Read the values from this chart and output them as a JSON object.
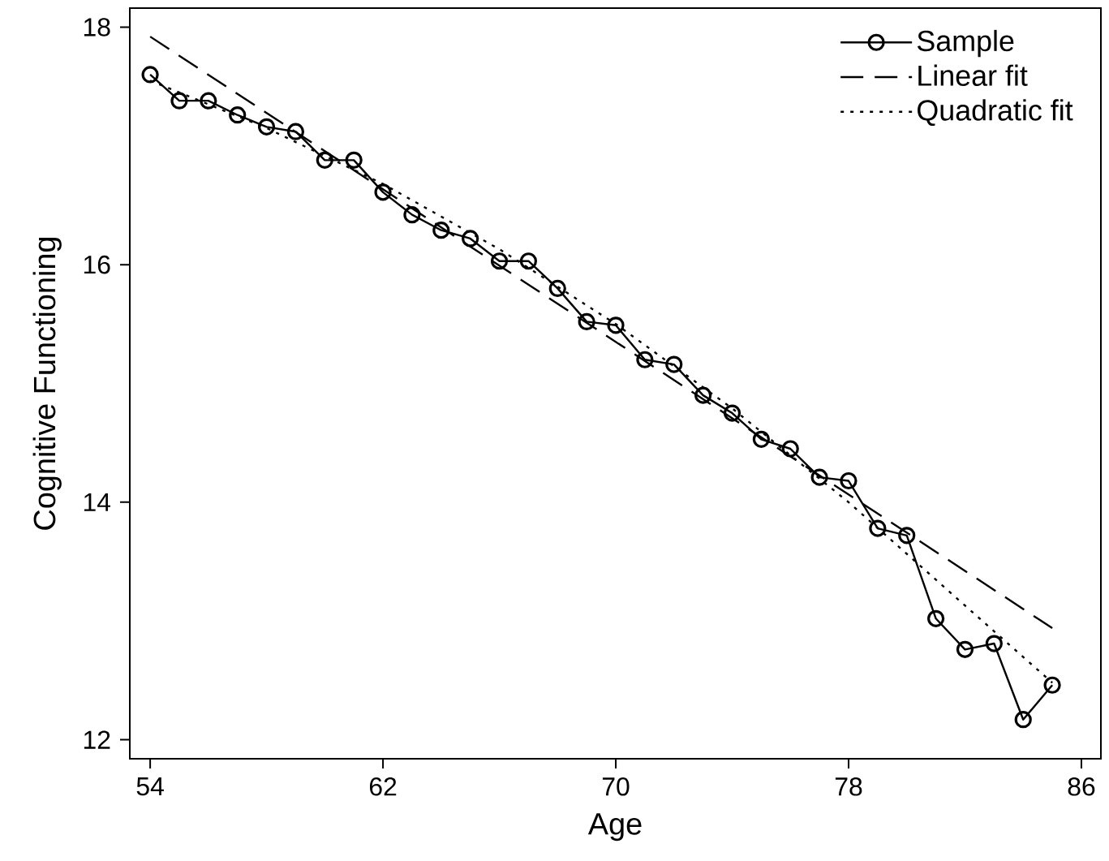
{
  "chart_data": {
    "type": "line",
    "xlabel": "Age",
    "ylabel": "Cognitive Functioning",
    "xlim": [
      53.3,
      86.67
    ],
    "ylim": [
      11.84,
      18.16
    ],
    "xticks": [
      54,
      62,
      70,
      78,
      86
    ],
    "yticks": [
      12,
      14,
      16,
      18
    ],
    "legend": "top right",
    "grid": false,
    "series": [
      {
        "name": "Sample",
        "color": "#000000",
        "marker": "circle",
        "line_style": "solid",
        "x": [
          54,
          55,
          56,
          57,
          58,
          59,
          60,
          61,
          62,
          63,
          64,
          65,
          66,
          67,
          68,
          69,
          70,
          71,
          72,
          73,
          74,
          75,
          76,
          77,
          78,
          79,
          80,
          81,
          82,
          83,
          84,
          85
        ],
        "values": [
          17.6,
          17.38,
          17.38,
          17.26,
          17.16,
          17.12,
          16.88,
          16.88,
          16.61,
          16.42,
          16.29,
          16.22,
          16.03,
          16.03,
          15.8,
          15.52,
          15.49,
          15.2,
          15.16,
          14.9,
          14.75,
          14.53,
          14.45,
          14.21,
          14.18,
          13.78,
          13.72,
          13.02,
          12.76,
          12.81,
          12.17,
          12.46
        ]
      },
      {
        "name": "Linear fit",
        "color": "#000000",
        "marker": "none",
        "line_style": "dashed",
        "x": [
          54,
          85
        ],
        "values": [
          17.92,
          12.94
        ]
      },
      {
        "name": "Quadratic fit",
        "color": "#000000",
        "marker": "none",
        "line_style": "dotted",
        "x": [
          54,
          58,
          62,
          66,
          70,
          74,
          78,
          82,
          85
        ],
        "values": [
          17.55,
          17.15,
          16.68,
          16.13,
          15.5,
          14.79,
          14.0,
          13.13,
          12.48
        ]
      }
    ]
  }
}
